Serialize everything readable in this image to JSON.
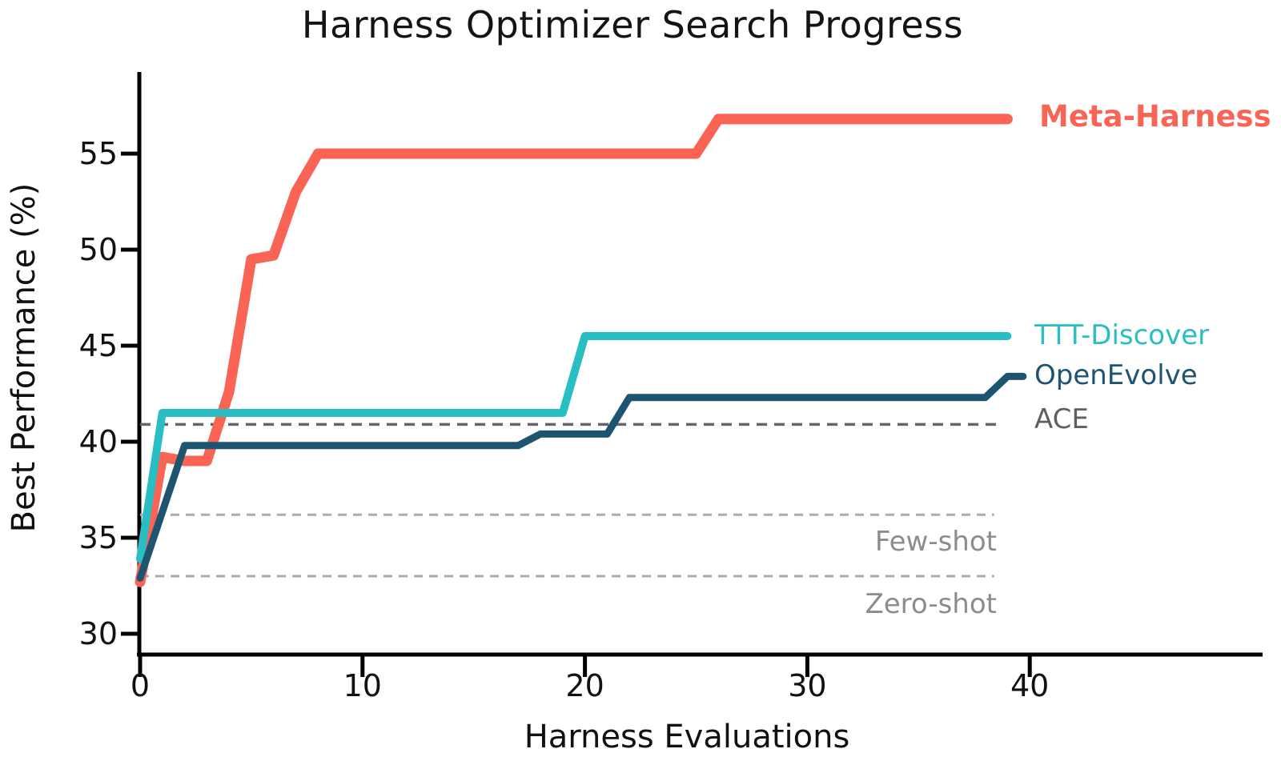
{
  "title": "Harness Optimizer Search Progress",
  "axes": {
    "xlabel": "Harness Evaluations",
    "ylabel": "Best Performance (%)",
    "x_ticks": [
      "0",
      "10",
      "20",
      "30",
      "40"
    ],
    "y_ticks": [
      "30",
      "35",
      "40",
      "45",
      "50",
      "55"
    ]
  },
  "chart_data": {
    "type": "line",
    "title": "Harness Optimizer Search Progress",
    "xlabel": "Harness Evaluations",
    "ylabel": "Best Performance (%)",
    "xlim": [
      0,
      50.5
    ],
    "ylim": [
      28.9,
      59.3
    ],
    "grid": false,
    "legend_position": "direct-labels-right-of-lines",
    "x_tick_values": [
      0,
      10,
      20,
      30,
      40
    ],
    "y_tick_values": [
      30,
      35,
      40,
      45,
      50,
      55
    ],
    "series": [
      {
        "name": "Meta-Harness",
        "color": "#FA6455",
        "stroke_width": 13,
        "x": [
          0,
          1,
          2,
          3,
          4,
          5,
          6,
          7,
          8,
          25,
          26,
          39
        ],
        "y": [
          32.7,
          39.2,
          39.0,
          39.0,
          42.6,
          49.5,
          49.7,
          53.0,
          55.0,
          55.0,
          56.8,
          56.8
        ]
      },
      {
        "name": "TTT-Discover",
        "color": "#29BEC3",
        "stroke_width": 10,
        "x": [
          0,
          1,
          19,
          20,
          39
        ],
        "y": [
          33.9,
          41.5,
          41.5,
          45.5,
          45.5
        ]
      },
      {
        "name": "OpenEvolve",
        "color": "#1D5571",
        "stroke_width": 9,
        "x": [
          0,
          2,
          17,
          18,
          21,
          22,
          38,
          39,
          39.7
        ],
        "y": [
          32.9,
          39.8,
          39.8,
          40.4,
          40.4,
          42.3,
          42.3,
          43.4,
          43.4
        ]
      }
    ],
    "baselines": [
      {
        "name": "ACE",
        "value": 40.9,
        "x_start": 0,
        "x_end": 38.5,
        "color": "#666666",
        "label_color": "#5F5F5F"
      },
      {
        "name": "Few-shot",
        "value": 36.2,
        "x_start": 0,
        "x_end": 38.4,
        "color": "#ACACAC",
        "label_color": "#8C8C8C"
      },
      {
        "name": "Zero-shot",
        "value": 33.0,
        "x_start": 0,
        "x_end": 38.4,
        "color": "#ACACAC",
        "label_color": "#8C8C8C"
      }
    ]
  }
}
